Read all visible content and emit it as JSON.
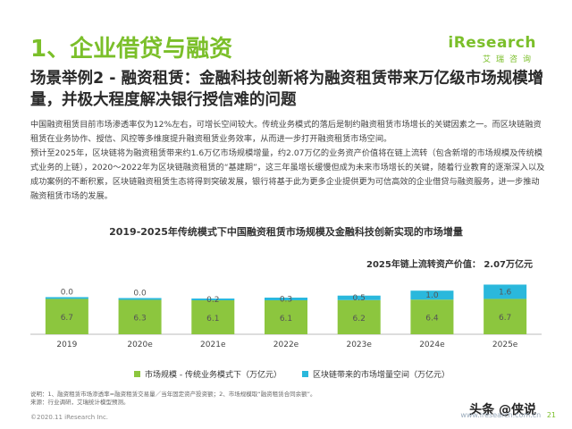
{
  "section_title": "1、企业借贷与融资",
  "logo": {
    "brand_i": "i",
    "brand_rest": "Research",
    "sub": "艾瑞咨询"
  },
  "headline": "场景举例2 - 融资租赁：金融科技创新将为融资租赁带来万亿级市场规模增量，并极大程度解决银行授信难的问题",
  "body": {
    "p1": "中国融资租赁目前市场渗透率仅为12%左右，可增长空间较大。传统业务模式的落后是制约融资租赁市场增长的关键因素之一。而区块链融资租赁在业务协作、授信、风控等多维度提升融资租赁业务效率，从而进一步打开融资租赁市场空间。",
    "p2": "预计至2025年，区块链将为融资租赁带来约1.6万亿市场规模增量，约2.07万亿的业务资产价值将在链上流转（包含新增的市场规模及传统模式业务的上链），2020～2022年为区块链融资租赁的“基建期”，这三年虽增长缓慢但成为未来市场增长的关键，随着行业教育的逐渐深入以及成功案例的不断积累，区块链融资租赁生态将得到突破发展，银行将基于此为更多企业提供更为可信高效的企业借贷与融资服务，进一步推动融资租赁市场的发展。"
  },
  "chart_data": {
    "type": "bar",
    "title": "2019-2025年传统模式下中国融资租赁市场规模及金融科技创新实现的市场增量",
    "annotation": "2025年链上流转资产价值： 2.07万亿元",
    "categories": [
      "2019",
      "2020e",
      "2021e",
      "2022e",
      "2023e",
      "2024e",
      "2025e"
    ],
    "series": [
      {
        "name": "市场规模 - 传统业务模式下（万亿元）",
        "values": [
          6.7,
          6.3,
          6.1,
          6.1,
          6.2,
          6.4,
          6.7
        ],
        "color": "#8cc63e"
      },
      {
        "name": "区块链带来的市场增量空间（万亿元）",
        "values": [
          0.0,
          0.0,
          0.2,
          0.3,
          0.5,
          1.0,
          1.6
        ],
        "color": "#2ab8dc"
      }
    ],
    "stacked": true,
    "grid": false
  },
  "notes": {
    "line1": "说明：1、融资租赁市场渗透率=融资租赁交易量／当年固定资产投资额；2、市场规模取“融资租赁合同余额”。",
    "line2": "来源：行业调研，艾瑞统计模型预测。"
  },
  "footer_left": "©2020.11 iResearch Inc.",
  "footer_right": "www.iresearch.com.cn",
  "page_number": "21",
  "watermark": "头条 @侠说"
}
